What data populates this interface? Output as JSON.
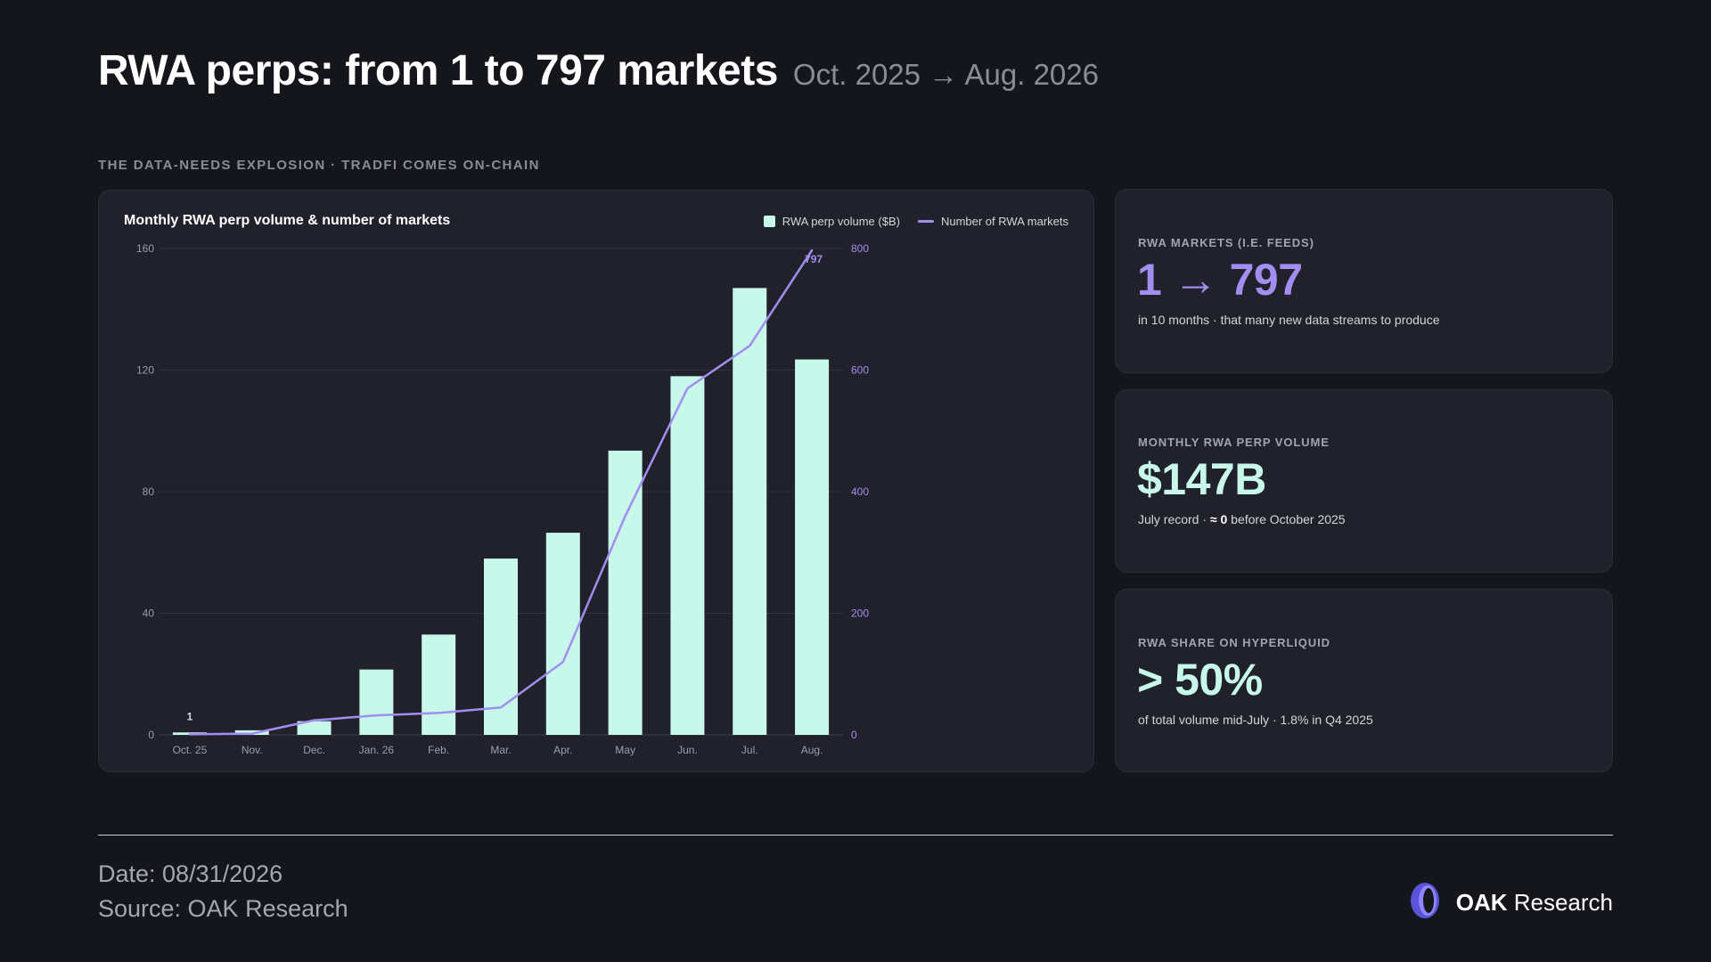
{
  "header": {
    "title": "RWA perps: from 1 to 797 markets",
    "subtitle": "Oct. 2025 → Aug. 2026",
    "kicker": "THE DATA-NEEDS EXPLOSION · TRADFI COMES ON-CHAIN"
  },
  "colors": {
    "background": "#15161c",
    "panel": "#21212c",
    "bar": "#c8f8ea",
    "line": "#a28ef0",
    "mint_value": "#c8f8ea",
    "purple_value": "#a28ef0"
  },
  "chart_data": {
    "type": "bar",
    "title": "Monthly RWA perp volume & number of markets",
    "categories": [
      "Oct. 25",
      "Nov.",
      "Dec.",
      "Jan. 26",
      "Feb.",
      "Mar.",
      "Apr.",
      "May",
      "Jun.",
      "Jul.",
      "Aug."
    ],
    "series": [
      {
        "name": "RWA perp volume ($B)",
        "type": "bar",
        "axis": "left",
        "values": [
          0.8,
          1.5,
          4.5,
          21.5,
          33,
          58,
          66.5,
          93.5,
          118,
          147,
          123.5
        ]
      },
      {
        "name": "Number of RWA markets",
        "type": "line",
        "axis": "right",
        "values": [
          1,
          2,
          24,
          32,
          36,
          45,
          120,
          360,
          570,
          640,
          797
        ]
      }
    ],
    "left_axis": {
      "ylim": [
        0,
        160
      ],
      "ticks": [
        "0",
        "40",
        "80",
        "120",
        "160"
      ]
    },
    "right_axis": {
      "ylim": [
        0,
        800
      ],
      "ticks": [
        "0",
        "200",
        "400",
        "600",
        "800"
      ]
    },
    "annotations": {
      "first_bar_label": "1",
      "last_point_label": "797"
    },
    "grid": true,
    "legend": "top-right"
  },
  "cards": [
    {
      "label": "RWA MARKETS (I.E. FEEDS)",
      "value": "1 → 797",
      "note": "in 10 months · that many new data streams to produce"
    },
    {
      "label": "MONTHLY RWA PERP VOLUME",
      "value": "$147B",
      "note_before": "July record · ",
      "note_bold": "≈ 0",
      "note_after": " before October 2025"
    },
    {
      "label": "RWA SHARE ON HYPERLIQUID",
      "value": "> 50%",
      "note": "of total volume mid-July · 1.8% in Q4 2025"
    }
  ],
  "footer": {
    "date": "Date: 08/31/2026",
    "source": "Source: OAK Research",
    "brand_bold": "OAK",
    "brand_rest": " Research",
    "logo_icon": "oak-logo-icon"
  }
}
